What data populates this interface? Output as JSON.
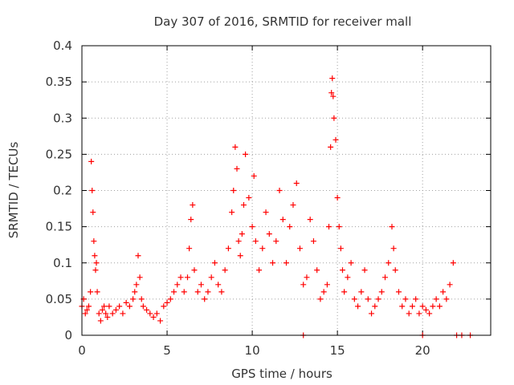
{
  "colors": {
    "series": "#ff0000",
    "grid": "#a0a0a0",
    "frame": "#000000",
    "text": "#333333"
  },
  "chart_data": {
    "type": "scatter",
    "title": "Day 307 of 2016, SRMTID for receiver mall",
    "xlabel": "GPS time / hours",
    "ylabel": "SRMTID / TECUs",
    "xlim": [
      0,
      24
    ],
    "ylim": [
      0,
      0.4
    ],
    "xticks": [
      0,
      5,
      10,
      15,
      20
    ],
    "yticks": [
      0,
      0.05,
      0.1,
      0.15,
      0.2,
      0.25,
      0.3,
      0.35,
      0.4
    ],
    "xtick_labels": [
      "0",
      "5",
      "10",
      "15",
      "20"
    ],
    "ytick_labels": [
      "0",
      "0.05",
      "0.1",
      "0.15",
      "0.2",
      "0.25",
      "0.3",
      "0.35",
      "0.4"
    ],
    "grid": true,
    "marker": "plus",
    "series": [
      {
        "name": "SRMTID",
        "x": [
          0.0,
          0.1,
          0.2,
          0.3,
          0.4,
          0.5,
          0.55,
          0.6,
          0.65,
          0.7,
          0.75,
          0.8,
          0.85,
          0.9,
          1.0,
          1.1,
          1.2,
          1.3,
          1.4,
          1.5,
          1.6,
          1.8,
          2.0,
          2.2,
          2.4,
          2.6,
          2.8,
          3.0,
          3.1,
          3.2,
          3.3,
          3.4,
          3.5,
          3.6,
          3.8,
          4.0,
          4.2,
          4.4,
          4.6,
          4.8,
          5.0,
          5.2,
          5.4,
          5.6,
          5.8,
          6.0,
          6.2,
          6.3,
          6.4,
          6.5,
          6.6,
          6.8,
          7.0,
          7.2,
          7.4,
          7.6,
          7.8,
          8.0,
          8.2,
          8.4,
          8.6,
          8.8,
          8.9,
          9.0,
          9.1,
          9.2,
          9.3,
          9.4,
          9.5,
          9.6,
          9.8,
          10.0,
          10.1,
          10.2,
          10.4,
          10.6,
          10.8,
          11.0,
          11.2,
          11.4,
          11.6,
          11.8,
          12.0,
          12.2,
          12.4,
          12.6,
          12.8,
          13.0,
          13.0,
          13.2,
          13.4,
          13.6,
          13.8,
          14.0,
          14.2,
          14.4,
          14.5,
          14.6,
          14.65,
          14.7,
          14.75,
          14.8,
          14.9,
          15.0,
          15.1,
          15.2,
          15.3,
          15.4,
          15.6,
          15.8,
          16.0,
          16.2,
          16.4,
          16.6,
          16.8,
          17.0,
          17.2,
          17.4,
          17.6,
          17.8,
          18.0,
          18.2,
          18.3,
          18.4,
          18.6,
          18.8,
          19.0,
          19.2,
          19.4,
          19.6,
          19.8,
          20.0,
          20.0,
          20.2,
          20.4,
          20.6,
          20.8,
          21.0,
          21.2,
          21.4,
          21.6,
          21.8,
          22.0,
          22.3,
          22.8
        ],
        "y": [
          0.04,
          0.05,
          0.03,
          0.035,
          0.04,
          0.06,
          0.24,
          0.2,
          0.17,
          0.13,
          0.11,
          0.09,
          0.1,
          0.06,
          0.03,
          0.02,
          0.035,
          0.04,
          0.03,
          0.025,
          0.04,
          0.03,
          0.035,
          0.04,
          0.03,
          0.045,
          0.04,
          0.05,
          0.06,
          0.07,
          0.11,
          0.08,
          0.05,
          0.04,
          0.035,
          0.03,
          0.025,
          0.03,
          0.02,
          0.04,
          0.045,
          0.05,
          0.06,
          0.07,
          0.08,
          0.06,
          0.08,
          0.12,
          0.16,
          0.18,
          0.09,
          0.06,
          0.07,
          0.05,
          0.06,
          0.08,
          0.1,
          0.07,
          0.06,
          0.09,
          0.12,
          0.17,
          0.2,
          0.26,
          0.23,
          0.13,
          0.11,
          0.14,
          0.18,
          0.25,
          0.19,
          0.15,
          0.22,
          0.13,
          0.09,
          0.12,
          0.17,
          0.14,
          0.1,
          0.13,
          0.2,
          0.16,
          0.1,
          0.15,
          0.18,
          0.21,
          0.12,
          0.07,
          0.0,
          0.08,
          0.16,
          0.13,
          0.09,
          0.05,
          0.06,
          0.07,
          0.15,
          0.26,
          0.335,
          0.355,
          0.33,
          0.3,
          0.27,
          0.19,
          0.15,
          0.12,
          0.09,
          0.06,
          0.08,
          0.1,
          0.05,
          0.04,
          0.06,
          0.09,
          0.05,
          0.03,
          0.04,
          0.05,
          0.06,
          0.08,
          0.1,
          0.15,
          0.12,
          0.09,
          0.06,
          0.04,
          0.05,
          0.03,
          0.04,
          0.05,
          0.03,
          0.04,
          0.0,
          0.035,
          0.03,
          0.04,
          0.05,
          0.04,
          0.06,
          0.05,
          0.07,
          0.1,
          0.0,
          0.0,
          0.0
        ]
      }
    ]
  }
}
